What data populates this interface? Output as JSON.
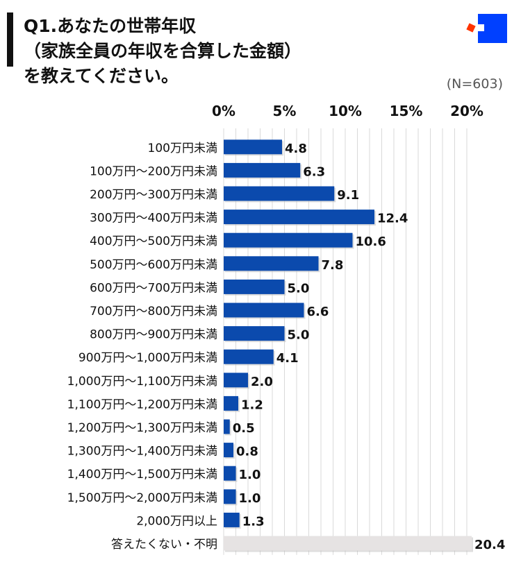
{
  "title_lines": [
    "Q1.あなたの世帯年収",
    "（家族全員の年収を合算した金額）",
    "を教えてください。"
  ],
  "sample_size": "(N=603)",
  "colors": {
    "bar": "#0b4aad",
    "bar_other": "#e6e3e3",
    "logo_blue": "#0040ff",
    "logo_red": "#ff3300"
  },
  "icons": {
    "logo": "brand-logo-squares"
  },
  "chart_data": {
    "type": "bar",
    "orientation": "horizontal",
    "xlim": [
      0,
      20
    ],
    "xticks": [
      0,
      5,
      10,
      15,
      20
    ],
    "xtick_labels": [
      "0%",
      "5%",
      "10%",
      "15%",
      "20%"
    ],
    "xaxis_position": "top",
    "grid": "vertical, every 1%",
    "categories": [
      "100万円未満",
      "100万円～200万円未満",
      "200万円～300万円未満",
      "300万円～400万円未満",
      "400万円～500万円未満",
      "500万円～600万円未満",
      "600万円～700万円未満",
      "700万円～800万円未満",
      "800万円～900万円未満",
      "900万円～1,000万円未満",
      "1,000万円～1,100万円未満",
      "1,100万円～1,200万円未満",
      "1,200万円～1,300万円未満",
      "1,300万円～1,400万円未満",
      "1,400万円～1,500万円未満",
      "1,500万円～2,000万円未満",
      "2,000万円以上",
      "答えたくない・不明"
    ],
    "values": [
      4.8,
      6.3,
      9.1,
      12.4,
      10.6,
      7.8,
      5.0,
      6.6,
      5.0,
      4.1,
      2.0,
      1.2,
      0.5,
      0.8,
      1.0,
      1.0,
      1.3,
      20.4
    ],
    "value_labels": [
      "4.8",
      "6.3",
      "9.1",
      "12.4",
      "10.6",
      "7.8",
      "5.0",
      "6.6",
      "5.0",
      "4.1",
      "2.0",
      "1.2",
      "0.5",
      "0.8",
      "1.0",
      "1.0",
      "1.3",
      "20.4"
    ]
  }
}
